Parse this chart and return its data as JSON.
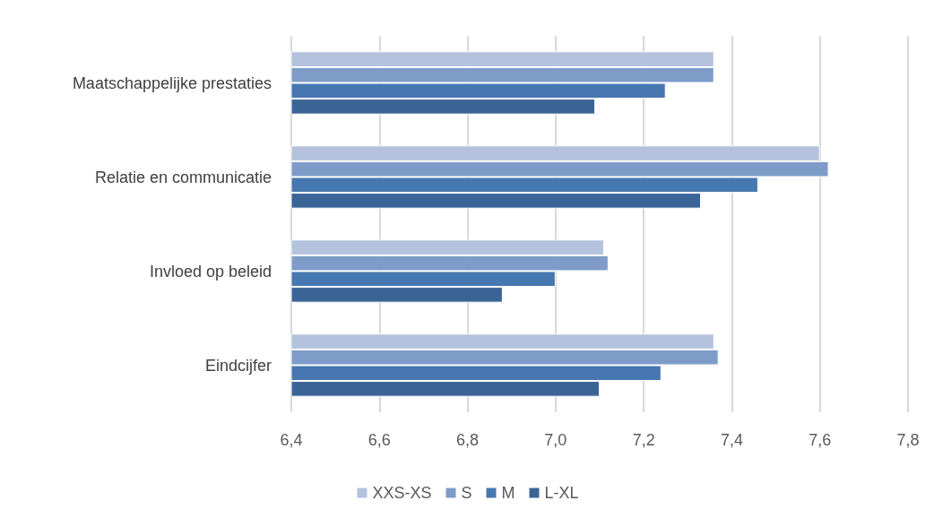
{
  "chart_data": {
    "type": "bar",
    "orientation": "horizontal",
    "categories": [
      "Maatschappelijke prestaties",
      "Relatie en communicatie",
      "Invloed op beleid",
      "Eindcijfer"
    ],
    "series": [
      {
        "name": "XXS-XS",
        "color": "#b4c2de",
        "values": [
          7.36,
          7.6,
          7.11,
          7.36
        ]
      },
      {
        "name": "S",
        "color": "#7f9cc9",
        "values": [
          7.36,
          7.62,
          7.12,
          7.37
        ]
      },
      {
        "name": "M",
        "color": "#4677b0",
        "values": [
          7.25,
          7.46,
          7.0,
          7.24
        ]
      },
      {
        "name": "L-XL",
        "color": "#3b6496",
        "values": [
          7.09,
          7.33,
          6.88,
          7.1
        ]
      }
    ],
    "xlim": [
      6.4,
      7.8
    ],
    "xticks": [
      {
        "value": 6.4,
        "label": "6,4"
      },
      {
        "value": 6.6,
        "label": "6,6"
      },
      {
        "value": 6.8,
        "label": "6,8"
      },
      {
        "value": 7.0,
        "label": "7,0"
      },
      {
        "value": 7.2,
        "label": "7,2"
      },
      {
        "value": 7.4,
        "label": "7,4"
      },
      {
        "value": 7.6,
        "label": "7,6"
      },
      {
        "value": 7.8,
        "label": "7,8"
      }
    ],
    "grid": "x",
    "legend": "bottom"
  }
}
